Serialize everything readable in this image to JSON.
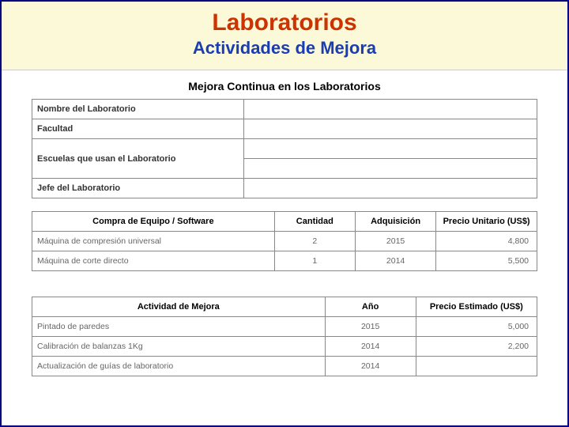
{
  "header": {
    "title": "Laboratorios",
    "subtitle": "Actividades de Mejora",
    "title_color": "#cc3300",
    "subtitle_color": "#1a3db3",
    "band_bg": "#fcf9d8"
  },
  "section_title": "Mejora Continua en los Laboratorios",
  "info_table": {
    "rows": [
      {
        "label": "Nombre del Laboratorio",
        "value": ""
      },
      {
        "label": "Facultad",
        "value": ""
      },
      {
        "label": "Escuelas que usan el Laboratorio",
        "value": "",
        "double": true
      },
      {
        "label": "Jefe del Laboratorio",
        "value": ""
      }
    ]
  },
  "purchase_table": {
    "headers": {
      "item": "Compra de Equipo / Software",
      "qty": "Cantidad",
      "acq": "Adquisición",
      "price": "Precio Unitario (US$)"
    },
    "rows": [
      {
        "item": "Máquina de compresión universal",
        "qty": "2",
        "acq": "2015",
        "price": "4,800"
      },
      {
        "item": "Máquina de corte directo",
        "qty": "1",
        "acq": "2014",
        "price": "5,500"
      }
    ]
  },
  "activity_table": {
    "headers": {
      "activity": "Actividad de Mejora",
      "year": "Año",
      "price": "Precio Estimado (US$)"
    },
    "rows": [
      {
        "activity": "Pintado de paredes",
        "year": "2015",
        "price": "5,000"
      },
      {
        "activity": "Calibración de balanzas 1Kg",
        "year": "2014",
        "price": "2,200"
      },
      {
        "activity": "Actualización de guías de laboratorio",
        "year": "2014",
        "price": ""
      }
    ]
  },
  "styles": {
    "border_color": "#888888",
    "header_text_color": "#000000",
    "body_text_color": "#666666",
    "page_border": "#000080",
    "font_family": "Verdana",
    "title_fontsize_pt": 22,
    "subtitle_fontsize_pt": 16,
    "table_fontsize_pt": 8
  }
}
